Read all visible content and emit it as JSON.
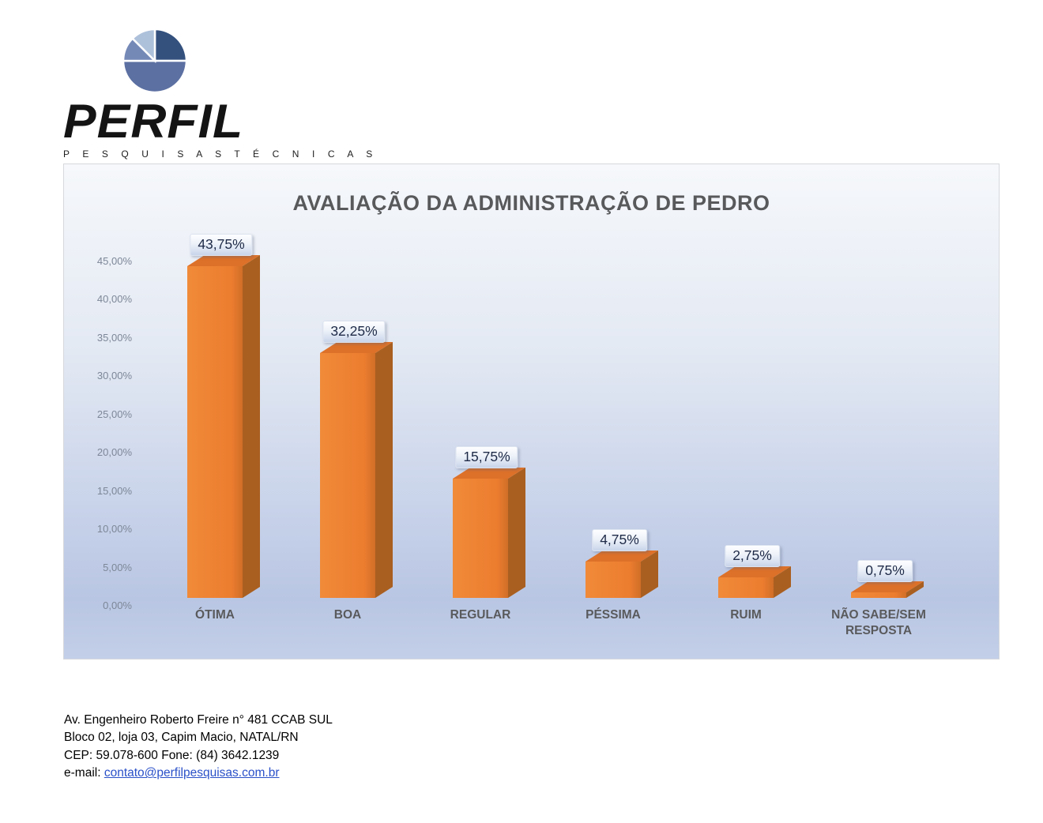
{
  "logo": {
    "brand": "PERFIL",
    "tagline": "P E S Q U I S A S   T É C N I C A S",
    "pie_icon": "pie-chart-icon",
    "pie_colors": [
      "#34517e",
      "#5c70a2",
      "#7589b7",
      "#aec1db"
    ]
  },
  "chart_data": {
    "type": "bar",
    "title": "AVALIAÇÃO DA ADMINISTRAÇÃO DE PEDRO",
    "categories": [
      "ÓTIMA",
      "BOA",
      "REGULAR",
      "PÉSSIMA",
      "RUIM",
      "NÃO SABE/SEM RESPOSTA"
    ],
    "values": [
      43.75,
      32.25,
      15.75,
      4.75,
      2.75,
      0.75
    ],
    "value_labels": [
      "43,75%",
      "32,25%",
      "15,75%",
      "4,75%",
      "2,75%",
      "0,75%"
    ],
    "y_ticks": [
      "45,00%",
      "40,00%",
      "35,00%",
      "30,00%",
      "25,00%",
      "20,00%",
      "15,00%",
      "10,00%",
      "5,00%",
      "0,00%"
    ],
    "ylabel": "",
    "xlabel": "",
    "ylim": [
      0,
      47.5
    ],
    "grid": false,
    "legend": false,
    "style": "3d-column",
    "bar_color": "#ec7d2f",
    "bar_side_color": "#a95f20",
    "bar_top_color": "#dd7129",
    "label_text_color": "#1e2a47",
    "title_color": "#58595b",
    "plot_bg_top": "#f6f8fb",
    "plot_bg_bottom": "#b9c6e3"
  },
  "footer": {
    "line1": "Av. Engenheiro Roberto Freire n° 481 CCAB SUL",
    "line2": "Bloco 02, loja 03, Capim Macio, NATAL/RN",
    "line3": "CEP: 59.078-600 Fone: (84) 3642.1239",
    "email_label": "e-mail: ",
    "email_link": "contato@perfilpesquisas.com.br"
  }
}
